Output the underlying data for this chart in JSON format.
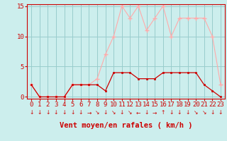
{
  "hours": [
    0,
    1,
    2,
    3,
    4,
    5,
    6,
    7,
    8,
    9,
    10,
    11,
    12,
    13,
    14,
    15,
    16,
    17,
    18,
    19,
    20,
    21,
    22,
    23
  ],
  "wind_avg": [
    2,
    0,
    0,
    0,
    0,
    2,
    2,
    2,
    2,
    1,
    4,
    4,
    4,
    3,
    3,
    3,
    4,
    4,
    4,
    4,
    4,
    2,
    1,
    0
  ],
  "wind_gust": [
    2,
    0,
    0,
    0,
    0,
    2,
    2,
    2,
    3,
    7,
    10,
    15,
    13,
    15,
    11,
    13,
    15,
    10,
    13,
    13,
    13,
    13,
    10,
    2
  ],
  "avg_color": "#cc0000",
  "gust_color": "#ffaaaa",
  "bg_color": "#cceeed",
  "grid_color": "#99cccc",
  "xlabel": "Vent moyen/en rafales ( km/h )",
  "ylim": [
    0,
    15
  ],
  "yticks": [
    0,
    5,
    10,
    15
  ],
  "tick_fontsize": 6.5,
  "label_fontsize": 7.5,
  "arrow_symbols": [
    "↓",
    "↓",
    "↓",
    "↓",
    "↓",
    "↓",
    "↓",
    "→",
    "↘",
    "↓",
    "↘",
    "↓",
    "↘",
    "←",
    "↓",
    "→",
    "↑",
    "↓",
    "↓",
    "↓",
    "↘",
    "↘",
    "↓",
    "↓"
  ]
}
